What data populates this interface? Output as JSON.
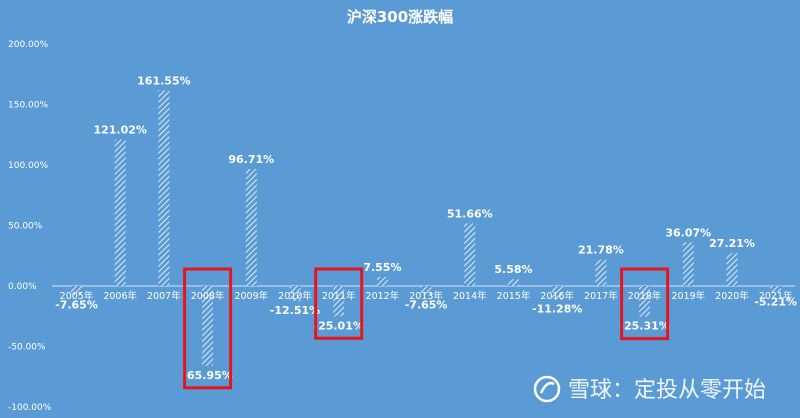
{
  "chart_data": {
    "type": "bar",
    "title": "沪深300涨跌幅",
    "categories": [
      "2005年",
      "2006年",
      "2007年",
      "2008年",
      "2009年",
      "2010年",
      "2011年",
      "2012年",
      "2013年",
      "2014年",
      "2015年",
      "2016年",
      "2017年",
      "2018年",
      "2019年",
      "2020年",
      "2021年"
    ],
    "values": [
      -7.65,
      121.02,
      161.55,
      -65.95,
      96.71,
      -12.51,
      -25.01,
      7.55,
      -7.65,
      51.66,
      5.58,
      -11.28,
      21.78,
      -25.31,
      36.07,
      27.21,
      -5.21
    ],
    "data_labels": [
      "-7.65%",
      "121.02%",
      "161.55%",
      "-65.95%",
      "96.71%",
      "-12.51%",
      "-25.01%",
      "7.55%",
      "-7.65%",
      "51.66%",
      "5.58%",
      "-11.28%",
      "21.78%",
      "-25.31%",
      "36.07%",
      "27.21%",
      "-5.21%"
    ],
    "y_ticks": [
      200,
      150,
      100,
      50,
      0,
      -50,
      -100
    ],
    "y_tick_labels": [
      "200.00%",
      "150.00%",
      "100.00%",
      "50.00%",
      "0.00%",
      "-50.00%",
      "-100.00%"
    ],
    "ylim": [
      -100,
      200
    ],
    "grid": false,
    "highlighted_categories": [
      "2008年",
      "2011年",
      "2018年"
    ],
    "colors": {
      "background": "#5b9bd5",
      "bar": "#ffffff",
      "highlight_box": "#e8141b",
      "text": "#ffffff"
    }
  },
  "watermark": {
    "text": "雪球：定投从零开始"
  }
}
